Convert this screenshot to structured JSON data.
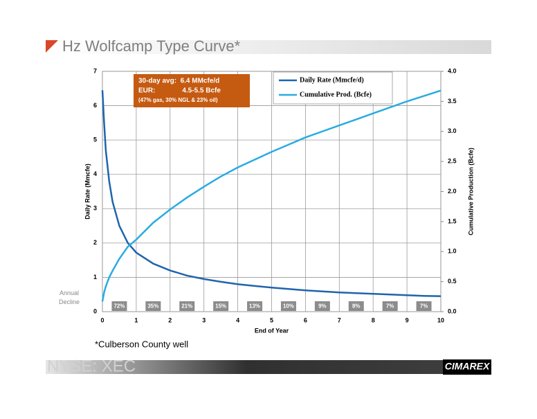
{
  "slide": {
    "title": "Hz Wolfcamp Type Curve*",
    "footnote": "*Culberson County well",
    "ticker": "NYSE: XEC",
    "logo": "CIMAREX"
  },
  "chart_data": {
    "type": "line",
    "x": [
      0,
      0.05,
      0.1,
      0.2,
      0.3,
      0.5,
      0.75,
      1,
      1.5,
      2,
      2.5,
      3,
      3.5,
      4,
      4.5,
      5,
      5.5,
      6,
      6.5,
      7,
      7.5,
      8,
      8.5,
      9,
      9.5,
      10
    ],
    "series": [
      {
        "name": "Daily Rate (Mmcfe/d)",
        "color": "#1f64ad",
        "axis": "y",
        "values": [
          6.45,
          5.5,
          4.7,
          3.8,
          3.2,
          2.5,
          2.0,
          1.72,
          1.4,
          1.2,
          1.05,
          0.95,
          0.87,
          0.8,
          0.75,
          0.7,
          0.66,
          0.62,
          0.59,
          0.56,
          0.54,
          0.52,
          0.5,
          0.48,
          0.46,
          0.45
        ]
      },
      {
        "name": "Cumulative Prod. (Bcfe)",
        "color": "#29abe2",
        "axis": "y2",
        "values": [
          0.17,
          0.32,
          0.42,
          0.57,
          0.68,
          0.88,
          1.08,
          1.2,
          1.48,
          1.7,
          1.9,
          2.08,
          2.25,
          2.4,
          2.53,
          2.66,
          2.78,
          2.9,
          3.0,
          3.1,
          3.2,
          3.3,
          3.4,
          3.5,
          3.59,
          3.68
        ]
      }
    ],
    "xlabel": "End of Year",
    "ylabel": "Daily Rate (Mmcfe)",
    "y2label": "Cumulative Production (Bcfe)",
    "xlim": [
      0,
      10
    ],
    "xticks": [
      0,
      1,
      2,
      3,
      4,
      5,
      6,
      7,
      8,
      9,
      10
    ],
    "ylim": [
      0,
      7
    ],
    "yticks": [
      0,
      1,
      2,
      3,
      4,
      5,
      6,
      7
    ],
    "y2lim": [
      0,
      4
    ],
    "y2ticks": [
      {
        "value": 0,
        "label": "0.0"
      },
      0.5,
      {
        "value": 1,
        "label": "1.0"
      },
      1.5,
      {
        "value": 2,
        "label": "2.0"
      },
      2.5,
      {
        "value": 3,
        "label": "3.0"
      },
      3.5,
      {
        "value": 4,
        "label": "4.0"
      }
    ],
    "grid": true,
    "legend": "upper right",
    "annotation": [
      "30-day avg:  6.4 MMcfe/d",
      "EUR:              4.5-5.5 Bcfe",
      "(47% gas, 30% NGL & 23% oil)"
    ],
    "annual_decline": {
      "label": "Annual Decline",
      "values": [
        72,
        35,
        21,
        15,
        13,
        10,
        9,
        8,
        7,
        7
      ],
      "value_labels": [
        "72%",
        "35%",
        "21%",
        "15%",
        "13%",
        "10%",
        "9%",
        "8%",
        "7%",
        "7%"
      ]
    }
  }
}
